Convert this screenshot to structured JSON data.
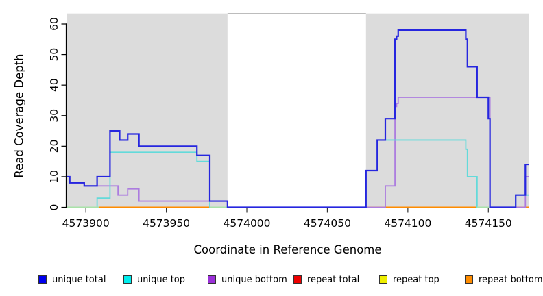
{
  "chart_data": {
    "type": "line",
    "step": true,
    "title": "",
    "xlabel": "Coordinate in Reference Genome",
    "ylabel": "Read Coverage Depth",
    "xlim": [
      4573888,
      4574175
    ],
    "ylim": [
      0,
      60
    ],
    "xticks": [
      4573900,
      4573950,
      4574000,
      4574050,
      4574100,
      4574150
    ],
    "yticks": [
      0,
      10,
      20,
      30,
      40,
      50,
      60
    ],
    "grid": "off",
    "shaded_region_color": "#DCDCDC",
    "shaded_regions": [
      {
        "start": 4573888,
        "end": 4573988
      },
      {
        "start": 4574074,
        "end": 4574175
      }
    ],
    "gap_top_border": {
      "start": 4573988,
      "end": 4574074,
      "color": "#4D4D4D"
    },
    "series": [
      {
        "name": "repeat total",
        "color": "#DF2A2A",
        "points": [
          [
            4573888,
            0
          ]
        ]
      },
      {
        "name": "repeat top",
        "color": "#E8E81A",
        "points": [
          [
            4573888,
            0
          ]
        ]
      },
      {
        "name": "repeat bottom",
        "color": "#FF8C00",
        "points": [
          [
            4573888,
            0
          ]
        ]
      },
      {
        "name": "unique bottom",
        "color": "#AC7CDF",
        "points": [
          [
            4573888,
            10
          ],
          [
            4573890,
            8
          ],
          [
            4573899,
            7
          ],
          [
            4573920,
            4
          ],
          [
            4573926,
            6
          ],
          [
            4573933,
            2
          ],
          [
            4573988,
            0
          ],
          [
            4574086,
            7
          ],
          [
            4574092,
            33
          ],
          [
            4574093,
            34
          ],
          [
            4574094,
            36
          ],
          [
            4574151,
            0
          ],
          [
            4574173,
            10
          ]
        ]
      },
      {
        "name": "unique top",
        "color": "#63DADA",
        "points": [
          [
            4573888,
            0
          ],
          [
            4573907,
            3
          ],
          [
            4573915,
            18
          ],
          [
            4573969,
            15
          ],
          [
            4573977,
            0
          ],
          [
            4574074,
            12
          ],
          [
            4574081,
            22
          ],
          [
            4574136,
            19
          ],
          [
            4574137,
            10
          ],
          [
            4574143,
            0
          ],
          [
            4574167,
            4
          ]
        ]
      },
      {
        "name": "unique total",
        "color": "#2626DF",
        "points": [
          [
            4573888,
            10
          ],
          [
            4573890,
            8
          ],
          [
            4573899,
            7
          ],
          [
            4573907,
            10
          ],
          [
            4573915,
            25
          ],
          [
            4573921,
            22
          ],
          [
            4573926,
            24
          ],
          [
            4573933,
            20
          ],
          [
            4573969,
            17
          ],
          [
            4573977,
            2
          ],
          [
            4573988,
            0
          ],
          [
            4574074,
            12
          ],
          [
            4574081,
            22
          ],
          [
            4574086,
            29
          ],
          [
            4574092,
            55
          ],
          [
            4574093,
            56
          ],
          [
            4574094,
            58
          ],
          [
            4574136,
            55
          ],
          [
            4574137,
            46
          ],
          [
            4574143,
            36
          ],
          [
            4574150,
            29
          ],
          [
            4574151,
            0
          ],
          [
            4574167,
            4
          ],
          [
            4574173,
            14
          ]
        ]
      }
    ],
    "overlap_segments": {
      "color": "#A9E2A9",
      "y": 0,
      "ranges": [
        [
          4573888,
          4573908
        ],
        [
          4573977,
          4573988
        ],
        [
          4574143,
          4574151
        ]
      ]
    },
    "legend": [
      {
        "label": "unique total",
        "color": "#0000EE"
      },
      {
        "label": "unique top",
        "color": "#00EEEE"
      },
      {
        "label": "unique bottom",
        "color": "#9B30D9"
      },
      {
        "label": "repeat total",
        "color": "#EE0000"
      },
      {
        "label": "repeat top",
        "color": "#EEEE00"
      },
      {
        "label": "repeat bottom",
        "color": "#FF8C00"
      }
    ]
  }
}
